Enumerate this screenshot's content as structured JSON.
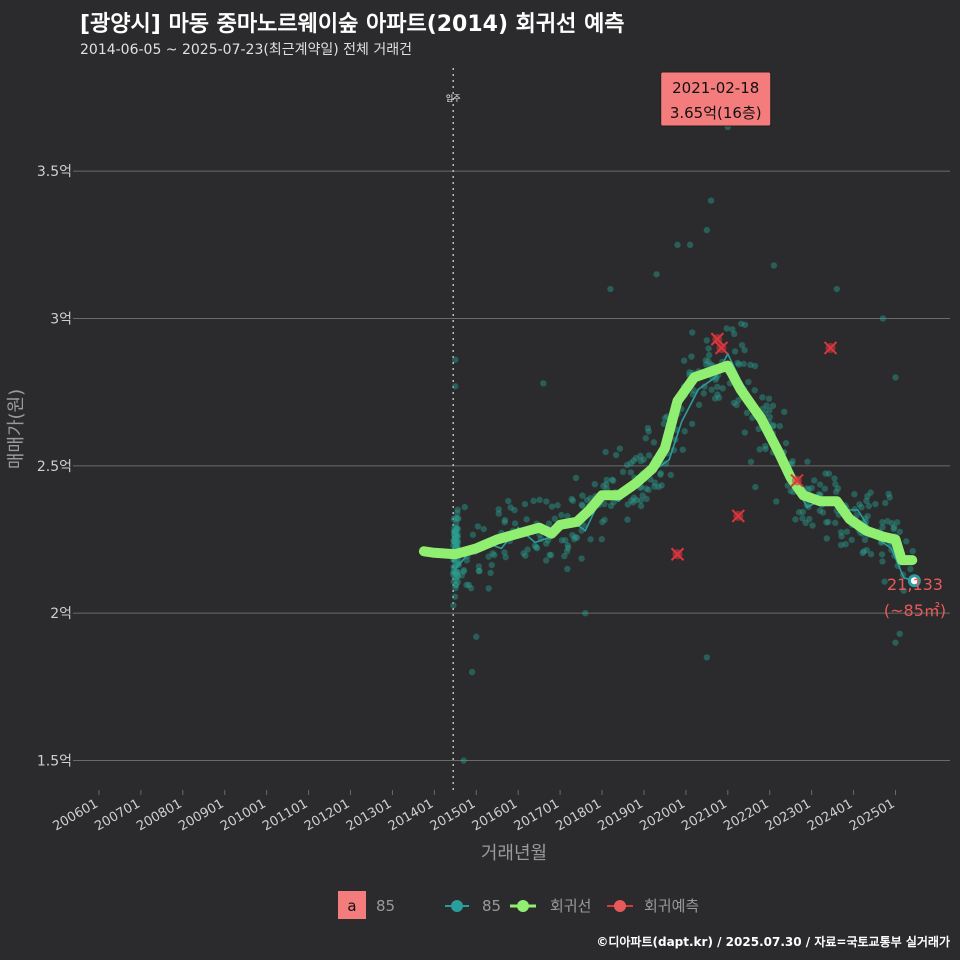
{
  "header": {
    "title": "[광양시] 마동 중마노르웨이숲 아파트(2014) 회귀선 예측",
    "subtitle": "2014-06-05 ~ 2025-07-23(최근계약일) 전체 거래건"
  },
  "caption": "©디아파트(dapt.kr) / 2025.07.30 / 자료=국토교통부 실거래가",
  "colors": {
    "background": "#2b2a2c",
    "grid": "#6a6a6a",
    "trade_points": "#2a9d8f",
    "moving_line": "#2a9d9d",
    "regression": "#90ee70",
    "forecast": "#d9363e",
    "label_box": "#f47c7c",
    "last_label": "#e85a5a"
  },
  "chart_data": {
    "type": "scatter",
    "xlabel": "거래년월",
    "ylabel": "매매가(원)",
    "xlim": [
      2005.5,
      2026.3
    ],
    "ylim": [
      1.4,
      3.85
    ],
    "x_ticks": [
      "200601",
      "200701",
      "200801",
      "200901",
      "201001",
      "201101",
      "201201",
      "201301",
      "201401",
      "201501",
      "201601",
      "201701",
      "201801",
      "201901",
      "202001",
      "202101",
      "202201",
      "202301",
      "202401",
      "202501"
    ],
    "y_ticks": [
      {
        "value": 1.5,
        "label": "1.5억"
      },
      {
        "value": 2.0,
        "label": "2억"
      },
      {
        "value": 2.5,
        "label": "2.5억"
      },
      {
        "value": 3.0,
        "label": "3억"
      },
      {
        "value": 3.5,
        "label": "3.5억"
      }
    ],
    "move_in": {
      "x": 2014.45,
      "label": "입주"
    },
    "max_annotation": {
      "x": 2020.95,
      "y": 3.65,
      "line1": "2021-02-18",
      "line2": "3.65억(16층)"
    },
    "last_point": {
      "x": 2025.45,
      "y": 2.11,
      "line1": "21,133",
      "line2": "(~85㎡)"
    },
    "regression_line": [
      [
        2013.75,
        2.21
      ],
      [
        2014.0,
        2.205
      ],
      [
        2014.5,
        2.2
      ],
      [
        2015.0,
        2.22
      ],
      [
        2015.5,
        2.25
      ],
      [
        2016.0,
        2.27
      ],
      [
        2016.5,
        2.29
      ],
      [
        2016.8,
        2.27
      ],
      [
        2017.0,
        2.3
      ],
      [
        2017.4,
        2.31
      ],
      [
        2017.7,
        2.35
      ],
      [
        2018.0,
        2.4
      ],
      [
        2018.4,
        2.4
      ],
      [
        2018.8,
        2.44
      ],
      [
        2019.2,
        2.49
      ],
      [
        2019.5,
        2.56
      ],
      [
        2019.8,
        2.72
      ],
      [
        2020.2,
        2.8
      ],
      [
        2020.6,
        2.82
      ],
      [
        2021.0,
        2.84
      ],
      [
        2021.3,
        2.76
      ],
      [
        2021.8,
        2.66
      ],
      [
        2022.2,
        2.55
      ],
      [
        2022.5,
        2.46
      ],
      [
        2022.8,
        2.4
      ],
      [
        2023.2,
        2.38
      ],
      [
        2023.6,
        2.38
      ],
      [
        2023.9,
        2.32
      ],
      [
        2024.3,
        2.28
      ],
      [
        2024.7,
        2.26
      ],
      [
        2025.0,
        2.25
      ],
      [
        2025.15,
        2.18
      ],
      [
        2025.4,
        2.18
      ]
    ],
    "moving_average": [
      [
        2014.5,
        2.15
      ],
      [
        2014.8,
        2.2
      ],
      [
        2015.2,
        2.24
      ],
      [
        2015.6,
        2.22
      ],
      [
        2016.0,
        2.29
      ],
      [
        2016.4,
        2.24
      ],
      [
        2016.8,
        2.26
      ],
      [
        2017.2,
        2.32
      ],
      [
        2017.6,
        2.28
      ],
      [
        2018.0,
        2.4
      ],
      [
        2018.4,
        2.38
      ],
      [
        2018.8,
        2.44
      ],
      [
        2019.2,
        2.48
      ],
      [
        2019.6,
        2.52
      ],
      [
        2019.9,
        2.65
      ],
      [
        2020.3,
        2.76
      ],
      [
        2020.7,
        2.8
      ],
      [
        2021.0,
        2.88
      ],
      [
        2021.3,
        2.79
      ],
      [
        2021.7,
        2.7
      ],
      [
        2022.1,
        2.6
      ],
      [
        2022.5,
        2.45
      ],
      [
        2022.9,
        2.36
      ],
      [
        2023.3,
        2.39
      ],
      [
        2023.7,
        2.35
      ],
      [
        2024.1,
        2.35
      ],
      [
        2024.5,
        2.26
      ],
      [
        2024.9,
        2.22
      ],
      [
        2025.2,
        2.12
      ],
      [
        2025.45,
        2.11
      ]
    ],
    "forecast_points": [
      [
        2019.8,
        2.2
      ],
      [
        2020.75,
        2.93
      ],
      [
        2020.85,
        2.9
      ],
      [
        2021.25,
        2.33
      ],
      [
        2022.65,
        2.45
      ],
      [
        2023.45,
        2.9
      ]
    ],
    "legend": {
      "area": "85",
      "trade": "85",
      "regression": "회귀선",
      "forecast": "회귀예측"
    }
  }
}
